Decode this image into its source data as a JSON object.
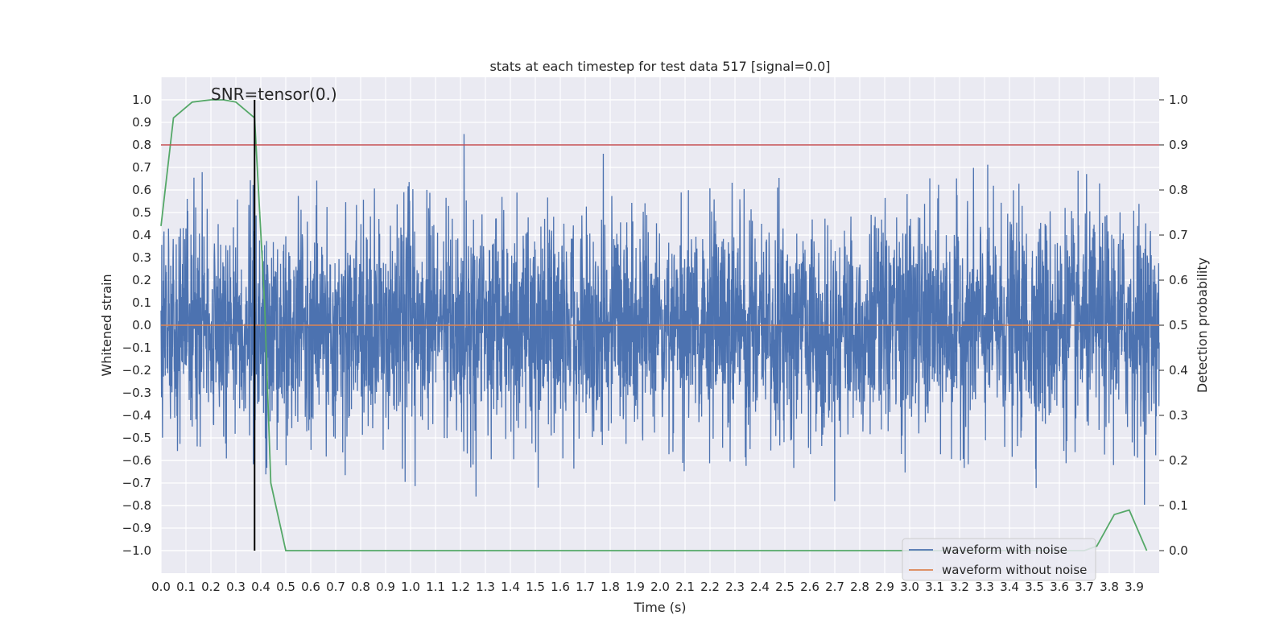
{
  "chart_data": {
    "type": "line",
    "title": "stats at each timestep for test data 517 [signal=0.0]",
    "xlabel": "Time (s)",
    "ylabel_left": "Whitened strain",
    "ylabel_right": "Detection probability",
    "annotation": "SNR=tensor(0.)",
    "xlim": [
      0.0,
      4.0
    ],
    "ylim_left": [
      -1.1,
      1.1
    ],
    "ylim_right": [
      -0.05,
      1.05
    ],
    "x_ticks": [
      0.0,
      0.1,
      0.2,
      0.3,
      0.4,
      0.5,
      0.6,
      0.7,
      0.8,
      0.9,
      1.0,
      1.1,
      1.2,
      1.3,
      1.4,
      1.5,
      1.6,
      1.7,
      1.8,
      1.9,
      2.0,
      2.1,
      2.2,
      2.3,
      2.4,
      2.5,
      2.6,
      2.7,
      2.8,
      2.9,
      3.0,
      3.1,
      3.2,
      3.3,
      3.4,
      3.5,
      3.6,
      3.7,
      3.8,
      3.9
    ],
    "y_ticks_left": [
      1.0,
      0.9,
      0.8,
      0.7,
      0.6,
      0.5,
      0.4,
      0.3,
      0.2,
      0.1,
      0.0,
      -0.1,
      -0.2,
      -0.3,
      -0.4,
      -0.5,
      -0.6,
      -0.7,
      -0.8,
      -0.9,
      -1.0
    ],
    "y_ticks_right": [
      1.0,
      0.9,
      0.8,
      0.7,
      0.6,
      0.5,
      0.4,
      0.3,
      0.2,
      0.1,
      0.0
    ],
    "grid": true,
    "legend_position": "lower-right",
    "series": [
      {
        "name": "waveform with noise",
        "color": "#4c72b0",
        "axis": "left",
        "noise": true,
        "approx_range": [
          -0.95,
          0.95
        ]
      },
      {
        "name": "waveform without noise",
        "color": "#dd8452",
        "axis": "left",
        "x": [
          0.0,
          4.0
        ],
        "y": [
          0.0,
          0.0
        ]
      },
      {
        "color": "#55a868",
        "axis": "right",
        "x": [
          0.0,
          0.05,
          0.125,
          0.2,
          0.25,
          0.3,
          0.375,
          0.415,
          0.44,
          0.46,
          0.5,
          0.55,
          1.0,
          1.5,
          2.0,
          2.4,
          2.8,
          3.2,
          3.5,
          3.7,
          3.75,
          3.82,
          3.88,
          3.95
        ],
        "y": [
          0.72,
          0.96,
          0.995,
          1.0,
          1.0,
          0.995,
          0.96,
          0.55,
          0.15,
          0.1,
          0.0,
          0.0,
          0.0,
          0.0,
          0.0,
          0.0,
          0.0,
          0.0,
          0.0,
          0.0,
          0.01,
          0.08,
          0.09,
          0.0
        ]
      },
      {
        "color": "#c44e52",
        "axis": "right",
        "x": [
          0.0,
          4.0
        ],
        "y": [
          0.9,
          0.9
        ]
      },
      {
        "color": "#000000",
        "axis": "left",
        "x": [
          0.375,
          0.375
        ],
        "y": [
          -1.0,
          1.0
        ]
      }
    ]
  }
}
